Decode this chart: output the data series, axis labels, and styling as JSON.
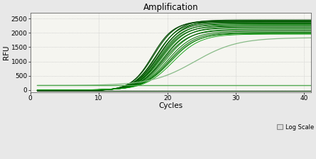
{
  "title": "Amplification",
  "xlabel": "Cycles",
  "ylabel": "RFU",
  "xlim": [
    0,
    41
  ],
  "ylim": [
    -80,
    2700
  ],
  "yticks": [
    0,
    500,
    1000,
    1500,
    2000,
    2500
  ],
  "xticks": [
    0,
    10,
    20,
    30,
    40
  ],
  "background_color": "#e8e8e8",
  "plot_bg_color": "#f5f5f0",
  "grid_color": "#bbbbbb",
  "legend_text": "Log Scale",
  "curve_params": [
    {
      "L": 2480,
      "k": 0.6,
      "x0": 18.5,
      "b": -25,
      "color": "#004400",
      "lw": 0.8
    },
    {
      "L": 2460,
      "k": 0.62,
      "x0": 18.0,
      "b": -25,
      "color": "#005500",
      "lw": 0.8
    },
    {
      "L": 2440,
      "k": 0.58,
      "x0": 18.8,
      "b": -22,
      "color": "#006600",
      "lw": 0.8
    },
    {
      "L": 2420,
      "k": 0.65,
      "x0": 17.8,
      "b": -22,
      "color": "#004400",
      "lw": 0.8
    },
    {
      "L": 2400,
      "k": 0.61,
      "x0": 18.3,
      "b": -20,
      "color": "#006600",
      "lw": 0.8
    },
    {
      "L": 2370,
      "k": 0.59,
      "x0": 18.6,
      "b": -20,
      "color": "#005500",
      "lw": 0.8
    },
    {
      "L": 2340,
      "k": 0.57,
      "x0": 19.0,
      "b": -18,
      "color": "#007700",
      "lw": 0.7
    },
    {
      "L": 2310,
      "k": 0.6,
      "x0": 18.8,
      "b": -18,
      "color": "#006600",
      "lw": 0.7
    },
    {
      "L": 2280,
      "k": 0.56,
      "x0": 19.2,
      "b": -15,
      "color": "#008800",
      "lw": 0.7
    },
    {
      "L": 2250,
      "k": 0.58,
      "x0": 19.0,
      "b": -12,
      "color": "#005500",
      "lw": 0.7
    },
    {
      "L": 2220,
      "k": 0.55,
      "x0": 19.5,
      "b": -10,
      "color": "#007700",
      "lw": 0.7
    },
    {
      "L": 2180,
      "k": 0.57,
      "x0": 19.3,
      "b": -8,
      "color": "#006600",
      "lw": 0.7
    },
    {
      "L": 2140,
      "k": 0.54,
      "x0": 19.8,
      "b": -6,
      "color": "#008800",
      "lw": 0.7
    },
    {
      "L": 2100,
      "k": 0.55,
      "x0": 19.5,
      "b": -5,
      "color": "#005500",
      "lw": 0.7
    },
    {
      "L": 2060,
      "k": 0.53,
      "x0": 20.0,
      "b": -4,
      "color": "#007700",
      "lw": 0.7
    },
    {
      "L": 2020,
      "k": 0.52,
      "x0": 20.2,
      "b": -3,
      "color": "#006600",
      "lw": 0.7
    },
    {
      "L": 2000,
      "k": 0.5,
      "x0": 20.5,
      "b": -2,
      "color": "#008800",
      "lw": 0.6
    },
    {
      "L": 1980,
      "k": 0.51,
      "x0": 20.3,
      "b": -2,
      "color": "#007700",
      "lw": 0.6
    },
    {
      "L": 1960,
      "k": 0.49,
      "x0": 20.8,
      "b": -2,
      "color": "#009900",
      "lw": 0.6
    },
    {
      "L": 1680,
      "k": 0.32,
      "x0": 24.0,
      "b": 155,
      "color": "#88bb88",
      "lw": 0.9
    },
    {
      "L": 155,
      "k": 0.0,
      "x0": 20.0,
      "b": 155,
      "color": "#55aa55",
      "lw": 1.0
    },
    {
      "L": 10,
      "k": 0.0,
      "x0": 20.0,
      "b": -25,
      "color": "#003300",
      "lw": 0.8
    }
  ]
}
